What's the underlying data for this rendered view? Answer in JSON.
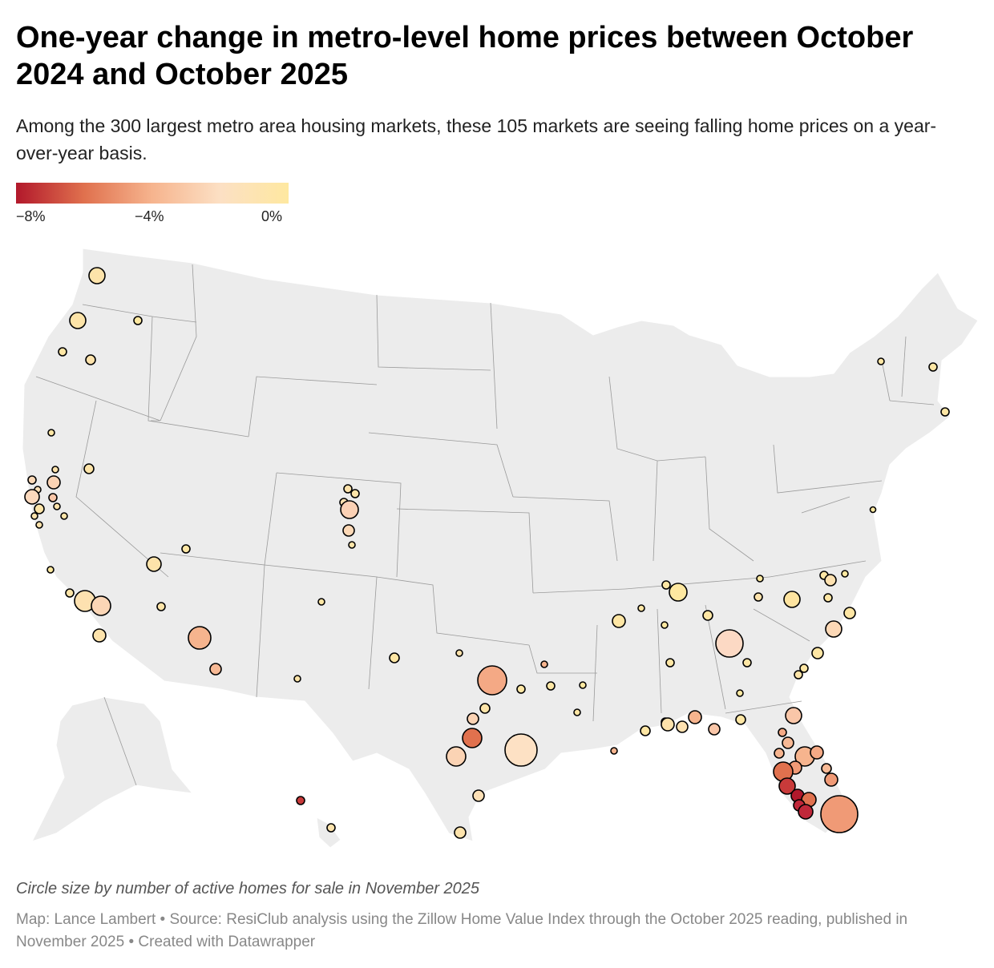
{
  "title": "One-year change in metro-level home prices between October 2024 and October 2025",
  "subtitle": "Among the 300 largest metro area housing markets, these 105 markets are seeing falling home prices on a year-over-year basis.",
  "legend": {
    "labels": [
      "−8%",
      "−4%",
      "0%"
    ],
    "colors": [
      "#b2182b",
      "#e0714e",
      "#f6b48e",
      "#fce0c4",
      "#fee8a0"
    ]
  },
  "note": "Circle size by number of active homes for sale in November 2025",
  "footer": "Map: Lance Lambert • Source: ResiClub analysis using the Zillow Home Value Index through the October 2025 reading, published in November 2025 • Created with Datawrapper",
  "colors": {
    "land": "#ececec",
    "borders": "#9a9a9a",
    "circle_stroke": "#000000"
  },
  "chart_data": {
    "type": "scatter",
    "title": "One-year change in metro-level home prices between October 2024 and October 2025",
    "value_field": "yoy_change_pct",
    "size_field": "active_listings_relative",
    "color_range": [
      -8,
      0
    ],
    "markets_count": 105,
    "markets_total": 300
  }
}
